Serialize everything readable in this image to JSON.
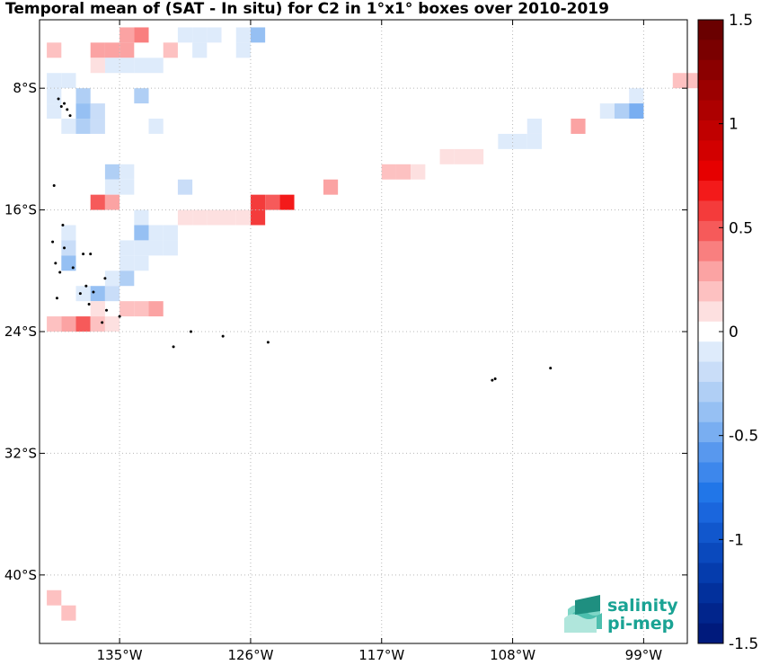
{
  "title": "Temporal mean of (SAT - In situ) for C2 in 1°x1° boxes over 2010-2019",
  "logo": {
    "line1": "salinity",
    "line2": "pi-mep"
  },
  "colors": {
    "positive": [
      "#fde0e0",
      "#fdc1c1",
      "#fba3a3",
      "#f97f7f",
      "#f65a5a",
      "#f43b3b",
      "#f31a1a",
      "#e60000",
      "#d20000",
      "#c00000",
      "#ad0000",
      "#9c0000",
      "#8b0000",
      "#7a0000",
      "#6a0000"
    ],
    "negative": [
      "#deebfb",
      "#c9ddf8",
      "#b0cff5",
      "#96c0f3",
      "#79aef1",
      "#5898ee",
      "#3d87ec",
      "#2176e8",
      "#1a66dd",
      "#1157cd",
      "#0a49bd",
      "#053cad",
      "#02309c",
      "#01258c",
      "#001a7c"
    ],
    "land": "#000000",
    "grid": "#b8b8b8"
  },
  "chart_data": {
    "type": "heatmap",
    "title": "Temporal mean of (SAT - In situ) for C2 in 1°x1° boxes over 2010-2019",
    "xlabel": "",
    "ylabel": "",
    "xlim": [
      -140.5,
      -96
    ],
    "ylim": [
      -44.5,
      -3.5
    ],
    "x_ticks": [
      -135,
      -126,
      -117,
      -108,
      -99
    ],
    "x_tick_labels": [
      "135°W",
      "126°W",
      "117°W",
      "108°W",
      "99°W"
    ],
    "y_ticks": [
      -8,
      -16,
      -24,
      -32,
      -40
    ],
    "y_tick_labels": [
      "8°S",
      "16°S",
      "24°S",
      "32°S",
      "40°S"
    ],
    "colorbar": {
      "range": [
        -1.5,
        1.5
      ],
      "ticks": [
        1.5,
        1,
        0.5,
        0,
        -0.5,
        -1,
        -1.5
      ],
      "tick_labels": [
        "1.5",
        "1",
        "0.5",
        "0",
        "-0.5",
        "-1",
        "-1.5"
      ],
      "step": 0.1
    },
    "grid": true,
    "cells_note": "lon/lat = lower-left corner of 1°x1° box, value in colorbar units",
    "cells": [
      [
        -135,
        -5,
        0.3
      ],
      [
        -134,
        -5,
        0.4
      ],
      [
        -131,
        -5,
        -0.1
      ],
      [
        -130,
        -5,
        -0.1
      ],
      [
        -129,
        -5,
        -0.1
      ],
      [
        -127,
        -5,
        -0.1
      ],
      [
        -126,
        -5,
        -0.4
      ],
      [
        -140,
        -6,
        0.2
      ],
      [
        -137,
        -6,
        0.3
      ],
      [
        -136,
        -6,
        0.3
      ],
      [
        -135,
        -6,
        0.3
      ],
      [
        -132,
        -6,
        0.2
      ],
      [
        -130,
        -6,
        -0.1
      ],
      [
        -127,
        -6,
        -0.1
      ],
      [
        -136,
        -7,
        -0.1
      ],
      [
        -135,
        -7,
        -0.1
      ],
      [
        -134,
        -7,
        -0.1
      ],
      [
        -133,
        -7,
        -0.1
      ],
      [
        -137,
        -7,
        0.1
      ],
      [
        -140,
        -8,
        -0.1
      ],
      [
        -139,
        -8,
        -0.1
      ],
      [
        -97,
        -8,
        0.2
      ],
      [
        -96,
        -8,
        0.2
      ],
      [
        -140,
        -9,
        -0.1
      ],
      [
        -138,
        -9,
        -0.3
      ],
      [
        -134,
        -9,
        -0.3
      ],
      [
        -100,
        -9,
        -0.1
      ],
      [
        -140,
        -10,
        -0.1
      ],
      [
        -138,
        -10,
        -0.4
      ],
      [
        -137,
        -10,
        -0.2
      ],
      [
        -102,
        -10,
        -0.1
      ],
      [
        -101,
        -10,
        -0.3
      ],
      [
        -100,
        -10,
        -0.5
      ],
      [
        -139,
        -11,
        -0.1
      ],
      [
        -138,
        -11,
        -0.3
      ],
      [
        -137,
        -11,
        -0.2
      ],
      [
        -133,
        -11,
        -0.1
      ],
      [
        -104,
        -11,
        0.3
      ],
      [
        -107,
        -11,
        -0.1
      ],
      [
        -109,
        -12,
        -0.1
      ],
      [
        -108,
        -12,
        -0.1
      ],
      [
        -107,
        -12,
        -0.1
      ],
      [
        -113,
        -13,
        0.1
      ],
      [
        -112,
        -13,
        0.1
      ],
      [
        -111,
        -13,
        0.1
      ],
      [
        -136,
        -14,
        -0.3
      ],
      [
        -135,
        -14,
        -0.1
      ],
      [
        -117,
        -14,
        0.2
      ],
      [
        -116,
        -14,
        0.2
      ],
      [
        -115,
        -14,
        0.1
      ],
      [
        -136,
        -15,
        -0.1
      ],
      [
        -135,
        -15,
        -0.1
      ],
      [
        -131,
        -15,
        -0.2
      ],
      [
        -121,
        -15,
        0.3
      ],
      [
        -137,
        -16,
        0.5
      ],
      [
        -136,
        -16,
        0.3
      ],
      [
        -126,
        -16,
        0.6
      ],
      [
        -125,
        -16,
        0.5
      ],
      [
        -124,
        -16,
        0.7
      ],
      [
        -134,
        -17,
        -0.1
      ],
      [
        -131,
        -17,
        0.1
      ],
      [
        -130,
        -17,
        0.1
      ],
      [
        -129,
        -17,
        0.1
      ],
      [
        -128,
        -17,
        0.1
      ],
      [
        -127,
        -17,
        0.1
      ],
      [
        -126,
        -17,
        0.6
      ],
      [
        -134,
        -18,
        -0.4
      ],
      [
        -133,
        -18,
        -0.1
      ],
      [
        -132,
        -18,
        -0.1
      ],
      [
        -139,
        -18,
        -0.1
      ],
      [
        -135,
        -19,
        -0.1
      ],
      [
        -134,
        -19,
        -0.1
      ],
      [
        -133,
        -19,
        -0.1
      ],
      [
        -132,
        -19,
        -0.1
      ],
      [
        -139,
        -19,
        -0.2
      ],
      [
        -139,
        -20,
        -0.4
      ],
      [
        -135,
        -20,
        -0.1
      ],
      [
        -134,
        -20,
        -0.1
      ],
      [
        -136,
        -21,
        -0.1
      ],
      [
        -135,
        -21,
        -0.3
      ],
      [
        -138,
        -22,
        -0.1
      ],
      [
        -137,
        -22,
        -0.4
      ],
      [
        -136,
        -22,
        -0.2
      ],
      [
        -137,
        -23,
        0.1
      ],
      [
        -134,
        -23,
        0.2
      ],
      [
        -133,
        -23,
        0.3
      ],
      [
        -135,
        -23,
        0.2
      ],
      [
        -140,
        -24,
        0.2
      ],
      [
        -139,
        -24,
        0.3
      ],
      [
        -138,
        -24,
        0.5
      ],
      [
        -137,
        -24,
        0.2
      ],
      [
        -136,
        -24,
        0.1
      ],
      [
        -140,
        -42,
        0.2
      ],
      [
        -139,
        -43,
        0.2
      ]
    ],
    "land_points": [
      [
        -139.2,
        -8.7
      ],
      [
        -139.0,
        -9.2
      ],
      [
        -138.8,
        -9.0
      ],
      [
        -138.6,
        -9.4
      ],
      [
        -138.4,
        -9.8
      ],
      [
        -139.5,
        -14.4
      ],
      [
        -138.9,
        -17.0
      ],
      [
        -139.6,
        -18.1
      ],
      [
        -138.8,
        -18.5
      ],
      [
        -137.5,
        -18.9
      ],
      [
        -137.0,
        -18.9
      ],
      [
        -139.4,
        -19.5
      ],
      [
        -139.1,
        -20.1
      ],
      [
        -138.2,
        -19.8
      ],
      [
        -136.0,
        -20.5
      ],
      [
        -137.3,
        -21.0
      ],
      [
        -136.8,
        -21.4
      ],
      [
        -137.7,
        -21.5
      ],
      [
        -139.3,
        -21.8
      ],
      [
        -137.1,
        -22.2
      ],
      [
        -135.9,
        -22.6
      ],
      [
        -135.0,
        -23.0
      ],
      [
        -136.2,
        -23.4
      ],
      [
        -130.1,
        -24.0
      ],
      [
        -127.9,
        -24.3
      ],
      [
        -124.8,
        -24.7
      ],
      [
        -131.3,
        -25.0
      ],
      [
        -109.4,
        -27.2
      ],
      [
        -109.2,
        -27.1
      ],
      [
        -105.4,
        -26.4
      ]
    ]
  }
}
